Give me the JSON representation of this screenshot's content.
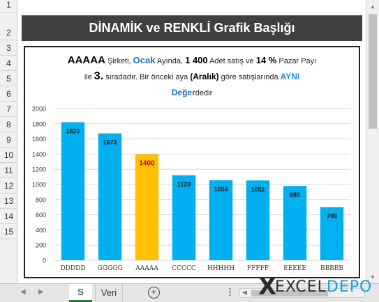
{
  "rows": [
    "1",
    "2",
    "3",
    "4",
    "5",
    "6",
    "7",
    "8",
    "9",
    "10",
    "11",
    "12",
    "13",
    "14",
    "15"
  ],
  "title": "DİNAMİK ve RENKLİ  Grafik Başlığı",
  "subtitle": {
    "company": "AAAAA",
    "t1": " Şirketi, ",
    "month": "Ocak",
    "t2": " Ayında, ",
    "sales": "1 400",
    "t3": " Adet satış ve ",
    "share": "14 %",
    "t4": " Pazar Payı",
    "t5": "ile ",
    "rank": "3.",
    "t6": " sıradadır. Bir önceki aya ",
    "prev_month": "(Aralık)",
    "t7": " göre satışlarında ",
    "status": "AYNI",
    "value_word": "Değer",
    "t8": "dedir"
  },
  "chart_data": {
    "type": "bar",
    "categories": [
      "DDDDD",
      "GGGGG",
      "AAAAA",
      "CCCCC",
      "HHHHH",
      "FFFFF",
      "EEEEE",
      "BBBBB"
    ],
    "values": [
      1820,
      1673,
      1400,
      1120,
      1054,
      1052,
      980,
      700
    ],
    "highlight_index": 2,
    "ylim": [
      0,
      2000
    ],
    "yticks": [
      0,
      200,
      400,
      600,
      800,
      1000,
      1200,
      1400,
      1600,
      1800,
      2000
    ],
    "bar_color": "#00b0f0",
    "highlight_color": "#ffc000",
    "label_color": "#1f1f1f",
    "highlight_label_color": "#c00000",
    "grid": true,
    "legend": "none"
  },
  "sheet_tabs": {
    "active": "S",
    "other": "Veri",
    "add": "+"
  },
  "logo": {
    "x": "X",
    "excel": "EXCEL",
    "depo": "DEPO"
  }
}
